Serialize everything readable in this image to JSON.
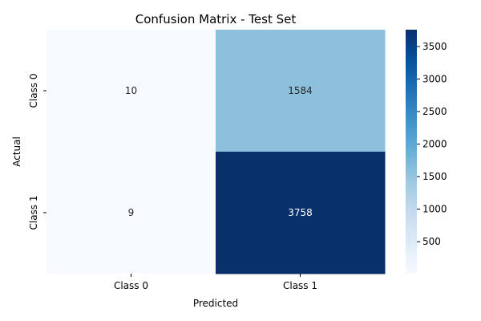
{
  "chart_data": {
    "type": "heatmap",
    "title": "Confusion Matrix - Test Set",
    "xlabel": "Predicted",
    "ylabel": "Actual",
    "x_categories": [
      "Class 0",
      "Class 1"
    ],
    "y_categories": [
      "Class 0",
      "Class 1"
    ],
    "values": [
      [
        10,
        1584
      ],
      [
        9,
        3758
      ]
    ],
    "colormap": "Blues",
    "colorbar": {
      "range": [
        9,
        3758
      ],
      "ticks": [
        500,
        1000,
        1500,
        2000,
        2500,
        3000,
        3500
      ],
      "tick_labels": [
        "500",
        "1000",
        "1500",
        "2000",
        "2500",
        "3000",
        "3500"
      ]
    },
    "annotations": true,
    "grid": false
  }
}
